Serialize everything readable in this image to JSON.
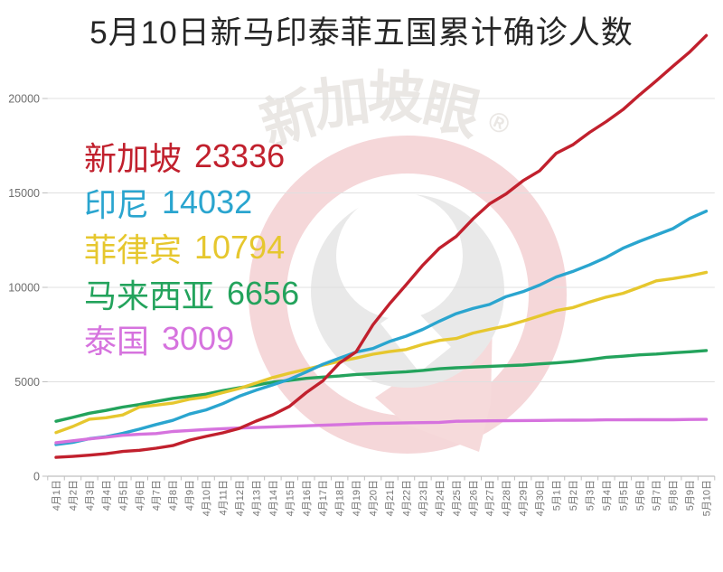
{
  "title": "5月10日新马印泰菲五国累计确诊人数",
  "watermark": {
    "text": "新加坡眼",
    "registered": "®"
  },
  "chart_data": {
    "type": "line",
    "title": "5月10日新马印泰菲五国累计确诊人数",
    "xlabel": "",
    "ylabel": "",
    "ylim": [
      0,
      25000
    ],
    "yticks": [
      0,
      5000,
      10000,
      15000,
      20000
    ],
    "grid": true,
    "legend_position": "upper-left-inside",
    "axis_colors": {
      "grid": "#e0e0e0",
      "axis": "#bfbfbf",
      "tick_label": "#757575"
    },
    "x_labels": [
      "4月1日",
      "4月2日",
      "4月3日",
      "4月4日",
      "4月5日",
      "4月6日",
      "4月7日",
      "4月8日",
      "4月9日",
      "4月10日",
      "4月11日",
      "4月12日",
      "4月13日",
      "4月14日",
      "4月15日",
      "4月16日",
      "4月17日",
      "4月18日",
      "4月19日",
      "4月20日",
      "4月21日",
      "4月22日",
      "4月23日",
      "4月24日",
      "4月25日",
      "4月26日",
      "4月27日",
      "4月28日",
      "4月29日",
      "4月30日",
      "5月1日",
      "5月2日",
      "5月3日",
      "5月4日",
      "5月5日",
      "5月6日",
      "5月7日",
      "5月8日",
      "5月9日",
      "5月10日"
    ],
    "series": [
      {
        "name": "新加坡",
        "value": 23336,
        "color": "#c1202d",
        "values": [
          1000,
          1049,
          1114,
          1189,
          1309,
          1375,
          1481,
          1623,
          1910,
          2108,
          2299,
          2532,
          2918,
          3252,
          3699,
          4427,
          5050,
          5992,
          6588,
          8014,
          9125,
          10141,
          11178,
          12075,
          12693,
          13624,
          14423,
          14951,
          15641,
          16169,
          17101,
          17548,
          18205,
          18778,
          19410,
          20198,
          20939,
          21707,
          22460,
          23336
        ]
      },
      {
        "name": "印尼",
        "value": 14032,
        "color": "#2aa5cf",
        "values": [
          1677,
          1790,
          1986,
          2092,
          2273,
          2491,
          2738,
          2956,
          3293,
          3512,
          3842,
          4241,
          4557,
          4839,
          5136,
          5516,
          5923,
          6248,
          6575,
          6760,
          7135,
          7418,
          7775,
          8211,
          8607,
          8882,
          9096,
          9511,
          9771,
          10118,
          10551,
          10843,
          11192,
          11587,
          12071,
          12438,
          12776,
          13112,
          13645,
          14032
        ]
      },
      {
        "name": "菲律宾",
        "value": 10794,
        "color": "#e6c72e",
        "values": [
          2311,
          2633,
          3018,
          3094,
          3246,
          3660,
          3764,
          3870,
          4076,
          4195,
          4428,
          4648,
          4932,
          5223,
          5453,
          5660,
          5878,
          6087,
          6259,
          6459,
          6599,
          6710,
          6981,
          7192,
          7294,
          7579,
          7777,
          7958,
          8212,
          8488,
          8772,
          8928,
          9223,
          9485,
          9684,
          10004,
          10343,
          10463,
          10610,
          10794
        ]
      },
      {
        "name": "马来西亚",
        "value": 6656,
        "color": "#23a35c",
        "values": [
          2908,
          3116,
          3333,
          3483,
          3662,
          3793,
          3963,
          4119,
          4228,
          4346,
          4530,
          4683,
          4817,
          4987,
          5072,
          5182,
          5251,
          5305,
          5389,
          5425,
          5482,
          5532,
          5603,
          5691,
          5742,
          5780,
          5820,
          5851,
          5887,
          5945,
          6002,
          6071,
          6176,
          6298,
          6353,
          6428,
          6467,
          6535,
          6589,
          6656
        ]
      },
      {
        "name": "泰国",
        "value": 3009,
        "color": "#d673de",
        "values": [
          1771,
          1875,
          1978,
          2067,
          2169,
          2220,
          2258,
          2369,
          2423,
          2473,
          2518,
          2551,
          2579,
          2613,
          2643,
          2672,
          2700,
          2733,
          2765,
          2792,
          2811,
          2826,
          2839,
          2854,
          2907,
          2922,
          2931,
          2938,
          2947,
          2954,
          2960,
          2966,
          2969,
          2987,
          2988,
          2989,
          2992,
          2992,
          3004,
          3009
        ]
      }
    ]
  }
}
